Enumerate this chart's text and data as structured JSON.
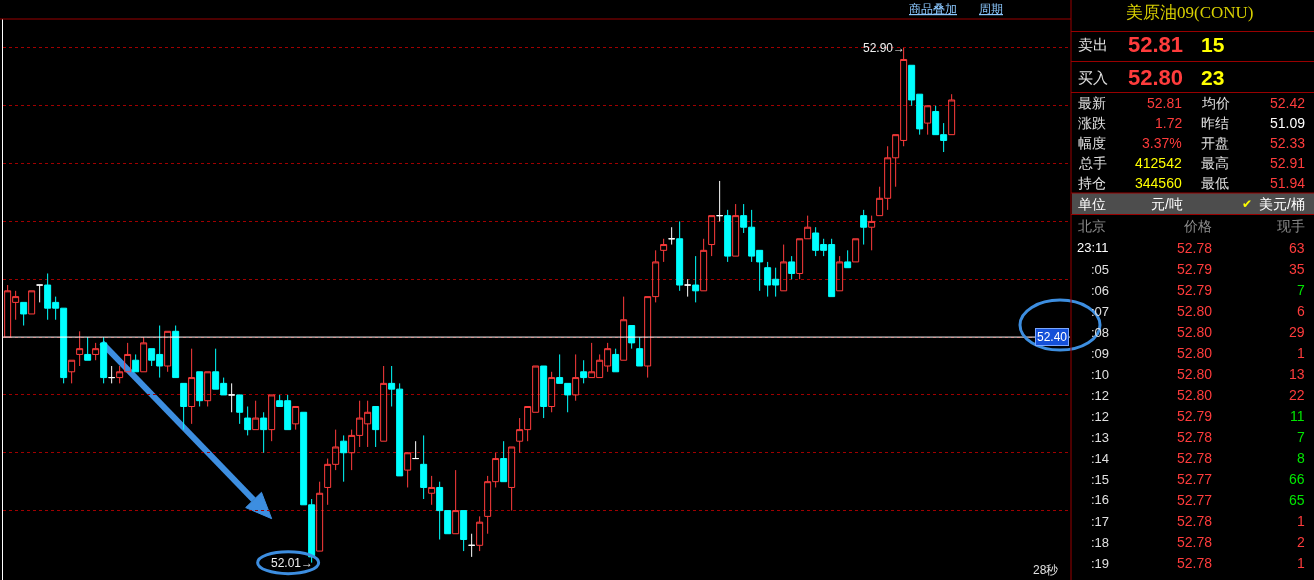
{
  "chart_data": [
    {
      "type": "candlestick",
      "categories": [
        null,
        null,
        null,
        null,
        null,
        null,
        null,
        null,
        null,
        null,
        null,
        null,
        null,
        null,
        null,
        null,
        null,
        null,
        null,
        null,
        null,
        null,
        null,
        null,
        null,
        null,
        null,
        null,
        null,
        null,
        null,
        null,
        null,
        null,
        null,
        null,
        null,
        null,
        null,
        null,
        null,
        null,
        null,
        null,
        null,
        null,
        null,
        null,
        null,
        null,
        null,
        null,
        null,
        null,
        null,
        null,
        null,
        null,
        null,
        null,
        null,
        null,
        null,
        null,
        null,
        null,
        null,
        null,
        null,
        null,
        null,
        null,
        null,
        null,
        null,
        null,
        null,
        null,
        null,
        null,
        null,
        null,
        null,
        null,
        null,
        null,
        null,
        null,
        null,
        null,
        null,
        null,
        null,
        null,
        null,
        null,
        null,
        null,
        null,
        null,
        null,
        null,
        null,
        null,
        null,
        null,
        null,
        null,
        null,
        null,
        null,
        null,
        null,
        null,
        null,
        null,
        null,
        null,
        null
      ],
      "ohlc": [
        [
          52.4,
          52.49,
          52.4,
          52.48
        ],
        [
          52.46,
          52.48,
          52.43,
          52.47
        ],
        [
          52.46,
          52.46,
          52.42,
          52.44
        ],
        [
          52.44,
          52.48,
          52.44,
          52.48
        ],
        [
          52.49,
          52.49,
          52.46,
          52.49
        ],
        [
          52.49,
          52.51,
          52.43,
          52.45
        ],
        [
          52.46,
          52.47,
          52.43,
          52.45
        ],
        [
          52.45,
          52.45,
          52.32,
          52.33
        ],
        [
          52.34,
          52.36,
          52.32,
          52.36
        ],
        [
          52.37,
          52.41,
          52.35,
          52.38
        ],
        [
          52.37,
          52.4,
          52.36,
          52.36
        ],
        [
          52.37,
          52.39,
          52.36,
          52.38
        ],
        [
          52.39,
          52.4,
          52.32,
          52.33
        ],
        [
          52.33,
          52.35,
          52.32,
          52.33
        ],
        [
          52.33,
          52.35,
          52.32,
          52.34
        ],
        [
          52.34,
          52.39,
          52.34,
          52.37
        ],
        [
          52.36,
          52.37,
          52.34,
          52.34
        ],
        [
          52.34,
          52.4,
          52.34,
          52.39
        ],
        [
          52.38,
          52.38,
          52.35,
          52.36
        ],
        [
          52.37,
          52.42,
          52.33,
          52.35
        ],
        [
          52.35,
          52.41,
          52.34,
          52.41
        ],
        [
          52.41,
          52.42,
          52.33,
          52.33
        ],
        [
          52.32,
          52.32,
          52.24,
          52.28
        ],
        [
          52.28,
          52.38,
          52.25,
          52.33
        ],
        [
          52.34,
          52.34,
          52.28,
          52.29
        ],
        [
          52.29,
          52.34,
          52.28,
          52.34
        ],
        [
          52.34,
          52.38,
          52.31,
          52.31
        ],
        [
          52.32,
          52.33,
          52.3,
          52.3
        ],
        [
          52.3,
          52.32,
          52.27,
          52.3
        ],
        [
          52.3,
          52.3,
          52.25,
          52.27
        ],
        [
          52.26,
          52.28,
          52.23,
          52.24
        ],
        [
          52.24,
          52.29,
          52.24,
          52.26
        ],
        [
          52.26,
          52.27,
          52.2,
          52.24
        ],
        [
          52.24,
          52.3,
          52.22,
          52.3
        ],
        [
          52.29,
          52.3,
          52.28,
          52.28
        ],
        [
          52.29,
          52.3,
          52.24,
          52.24
        ],
        [
          52.25,
          52.28,
          52.24,
          52.28
        ],
        [
          52.27,
          52.27,
          52.11,
          52.11
        ],
        [
          52.11,
          52.12,
          52.01,
          52.02
        ],
        [
          52.03,
          52.15,
          52.03,
          52.13
        ],
        [
          52.14,
          52.19,
          52.11,
          52.18
        ],
        [
          52.18,
          52.24,
          52.17,
          52.21
        ],
        [
          52.22,
          52.23,
          52.15,
          52.2
        ],
        [
          52.2,
          52.24,
          52.17,
          52.23
        ],
        [
          52.23,
          52.29,
          52.21,
          52.26
        ],
        [
          52.25,
          52.29,
          52.21,
          52.27
        ],
        [
          52.28,
          52.28,
          52.21,
          52.24
        ],
        [
          52.22,
          52.35,
          52.22,
          52.32
        ],
        [
          52.32,
          52.35,
          52.28,
          52.31
        ],
        [
          52.31,
          52.32,
          52.16,
          52.16
        ],
        [
          52.17,
          52.2,
          52.14,
          52.2
        ],
        [
          52.19,
          52.22,
          52.19,
          52.19
        ],
        [
          52.18,
          52.23,
          52.12,
          52.14
        ],
        [
          52.13,
          52.16,
          52.11,
          52.14
        ],
        [
          52.14,
          52.15,
          52.05,
          52.1
        ],
        [
          52.1,
          52.1,
          52.06,
          52.06
        ],
        [
          52.06,
          52.17,
          52.06,
          52.1
        ],
        [
          52.1,
          52.1,
          52.03,
          52.05
        ],
        [
          52.04,
          52.06,
          52.02,
          52.04
        ],
        [
          52.04,
          52.09,
          52.03,
          52.08
        ],
        [
          52.09,
          52.16,
          52.06,
          52.15
        ],
        [
          52.15,
          52.2,
          52.14,
          52.19
        ],
        [
          52.19,
          52.22,
          52.15,
          52.15
        ],
        [
          52.14,
          52.21,
          52.1,
          52.21
        ],
        [
          52.22,
          52.26,
          52.2,
          52.24
        ],
        [
          52.24,
          52.28,
          52.22,
          52.28
        ],
        [
          52.27,
          52.35,
          52.27,
          52.35
        ],
        [
          52.35,
          52.35,
          52.26,
          52.28
        ],
        [
          52.28,
          52.34,
          52.27,
          52.33
        ],
        [
          52.33,
          52.37,
          52.32,
          52.32
        ],
        [
          52.32,
          52.32,
          52.27,
          52.3
        ],
        [
          52.3,
          52.37,
          52.29,
          52.33
        ],
        [
          52.34,
          52.36,
          52.32,
          52.33
        ],
        [
          52.33,
          52.39,
          52.33,
          52.34
        ],
        [
          52.33,
          52.37,
          52.33,
          52.36
        ],
        [
          52.35,
          52.39,
          52.34,
          52.38
        ],
        [
          52.37,
          52.38,
          52.34,
          52.34
        ],
        [
          52.36,
          52.47,
          52.36,
          52.43
        ],
        [
          52.42,
          52.42,
          52.38,
          52.39
        ],
        [
          52.38,
          52.4,
          52.35,
          52.35
        ],
        [
          52.35,
          52.47,
          52.33,
          52.47
        ],
        [
          52.47,
          52.55,
          52.46,
          52.53
        ],
        [
          52.55,
          52.57,
          52.53,
          52.56
        ],
        [
          52.57,
          52.59,
          52.56,
          52.57
        ],
        [
          52.57,
          52.6,
          52.48,
          52.49
        ],
        [
          52.49,
          52.5,
          52.47,
          52.49
        ],
        [
          52.49,
          52.54,
          52.46,
          52.48
        ],
        [
          52.48,
          52.57,
          52.48,
          52.55
        ],
        [
          52.56,
          52.61,
          52.54,
          52.61
        ],
        [
          52.61,
          52.67,
          52.6,
          52.61
        ],
        [
          52.61,
          52.62,
          52.53,
          52.54
        ],
        [
          52.54,
          52.63,
          52.54,
          52.61
        ],
        [
          52.61,
          52.63,
          52.58,
          52.59
        ],
        [
          52.59,
          52.62,
          52.53,
          52.54
        ],
        [
          52.55,
          52.55,
          52.48,
          52.53
        ],
        [
          52.52,
          52.53,
          52.47,
          52.49
        ],
        [
          52.5,
          52.52,
          52.47,
          52.49
        ],
        [
          52.48,
          52.56,
          52.48,
          52.53
        ],
        [
          52.53,
          52.54,
          52.5,
          52.51
        ],
        [
          52.51,
          52.57,
          52.5,
          52.57
        ],
        [
          52.57,
          52.61,
          52.57,
          52.59
        ],
        [
          52.58,
          52.59,
          52.54,
          52.55
        ],
        [
          52.56,
          52.57,
          52.54,
          52.55
        ],
        [
          52.56,
          52.57,
          52.47,
          52.47
        ],
        [
          52.48,
          52.54,
          52.48,
          52.53
        ],
        [
          52.53,
          52.55,
          52.52,
          52.52
        ],
        [
          52.53,
          52.57,
          52.53,
          52.57
        ],
        [
          52.61,
          52.62,
          52.56,
          52.59
        ],
        [
          52.59,
          52.61,
          52.55,
          52.6
        ],
        [
          52.61,
          52.66,
          52.61,
          52.64
        ],
        [
          52.64,
          52.73,
          52.62,
          52.71
        ],
        [
          52.71,
          52.75,
          52.66,
          52.75
        ],
        [
          52.74,
          52.9,
          52.73,
          52.88
        ],
        [
          52.87,
          52.87,
          52.8,
          52.81
        ],
        [
          52.82,
          52.82,
          52.75,
          52.76
        ],
        [
          52.77,
          52.8,
          52.75,
          52.8
        ],
        [
          52.79,
          52.8,
          52.75,
          52.75
        ],
        [
          52.75,
          52.77,
          52.72,
          52.74
        ],
        [
          52.75,
          52.82,
          52.75,
          52.81
        ]
      ],
      "colors": [
        "#ff3c3c",
        "#ff3c3c",
        "#00ffff",
        "#ff3c3c",
        "#ffffff",
        "#00ffff",
        "#00ffff",
        "#00ffff",
        "#ff3c3c",
        "#ff3c3c",
        "#00ffff",
        "#ff3c3c",
        "#00ffff",
        "#ffffff",
        "#ff3c3c",
        "#ff3c3c",
        "#00ffff",
        "#ff3c3c",
        "#00ffff",
        "#00ffff",
        "#ff3c3c",
        "#00ffff",
        "#00ffff",
        "#ff3c3c",
        "#00ffff",
        "#ff3c3c",
        "#00ffff",
        "#00ffff",
        "#ffffff",
        "#00ffff",
        "#00ffff",
        "#ff3c3c",
        "#00ffff",
        "#ff3c3c",
        "#00ffff",
        "#00ffff",
        "#ff3c3c",
        "#00ffff",
        "#00ffff",
        "#ff3c3c",
        "#ff3c3c",
        "#ff3c3c",
        "#00ffff",
        "#ff3c3c",
        "#ff3c3c",
        "#ff3c3c",
        "#00ffff",
        "#ff3c3c",
        "#00ffff",
        "#00ffff",
        "#ff3c3c",
        "#ffffff",
        "#00ffff",
        "#ff3c3c",
        "#00ffff",
        "#00ffff",
        "#ff3c3c",
        "#00ffff",
        "#ffffff",
        "#ff3c3c",
        "#ff3c3c",
        "#ff3c3c",
        "#00ffff",
        "#ff3c3c",
        "#ff3c3c",
        "#ff3c3c",
        "#ff3c3c",
        "#00ffff",
        "#ff3c3c",
        "#00ffff",
        "#00ffff",
        "#ff3c3c",
        "#00ffff",
        "#ff3c3c",
        "#ff3c3c",
        "#ff3c3c",
        "#00ffff",
        "#ff3c3c",
        "#00ffff",
        "#00ffff",
        "#ff3c3c",
        "#ff3c3c",
        "#ff3c3c",
        "#ffffff",
        "#00ffff",
        "#ffffff",
        "#00ffff",
        "#ff3c3c",
        "#ff3c3c",
        "#ffffff",
        "#00ffff",
        "#ff3c3c",
        "#00ffff",
        "#00ffff",
        "#00ffff",
        "#00ffff",
        "#00ffff",
        "#ff3c3c",
        "#00ffff",
        "#ff3c3c",
        "#ff3c3c",
        "#00ffff",
        "#00ffff",
        "#00ffff",
        "#ff3c3c",
        "#00ffff",
        "#ff3c3c",
        "#00ffff",
        "#ff3c3c",
        "#ff3c3c",
        "#ff3c3c",
        "#ff3c3c",
        "#ff3c3c",
        "#00ffff",
        "#00ffff",
        "#ff3c3c",
        "#00ffff",
        "#00ffff",
        "#ff3c3c"
      ],
      "ylim": [
        51.98,
        52.95
      ],
      "yticks": [
        {
          "value": 52.1,
          "label": null
        },
        {
          "value": 52.2,
          "label": null
        },
        {
          "value": 52.3,
          "label": null
        },
        {
          "value": 52.4,
          "label": null
        },
        {
          "value": 52.5,
          "label": null
        },
        {
          "value": 52.6,
          "label": null
        },
        {
          "value": 52.7,
          "label": null
        },
        {
          "value": 52.8,
          "label": null
        },
        {
          "value": 52.9,
          "label": null
        }
      ],
      "grid": "y",
      "ref_lines": [
        {
          "axis": "y",
          "value": 52.4,
          "label": "52.40",
          "color": "#ffffff"
        }
      ],
      "annotations": [
        "52.90→",
        "52.01→",
        "商品叠加",
        "周期",
        "28秒"
      ]
    },
    {
      "type": "other",
      "title": "美原油09(CONU)",
      "annotations": [
        "卖出",
        "52.81",
        "15",
        "买入",
        "52.80",
        "23",
        "最新",
        "52.81",
        "均价",
        "52.42",
        "涨跌",
        "1.72",
        "昨结",
        "51.09",
        "幅度",
        "3.37%",
        "开盘",
        "52.33",
        "总手",
        "412542",
        "最高",
        "52.91",
        "持仓",
        "344560",
        "最低",
        "51.94",
        "单位",
        "元/吨",
        "✔",
        "美元/桶",
        "北京",
        "价格",
        "现手",
        "23:11",
        "52.78",
        "63",
        ":05",
        "52.79",
        "35",
        ":06",
        "52.79",
        "7",
        ":07",
        "52.80",
        "6",
        ":08",
        "52.80",
        "29",
        ":09",
        "52.80",
        "1",
        ":10",
        "52.80",
        "13",
        ":12",
        "52.80",
        "22",
        ":12",
        "52.79",
        "11",
        ":13",
        "52.78",
        "7",
        ":14",
        "52.78",
        "8",
        ":15",
        "52.77",
        "66",
        ":16",
        "52.77",
        "65",
        ":17",
        "52.78",
        "1",
        ":18",
        "52.78",
        "2",
        ":19",
        "52.78",
        "1"
      ],
      "colors": [
        "#e0e0e0",
        "#ff3c3c",
        "#ffff00",
        "#e0e0e0",
        "#ff3c3c",
        "#ffff00",
        "#e0e0e0",
        "#ff3c3c",
        "#e0e0e0",
        "#ff3c3c",
        "#e0e0e0",
        "#ff3c3c",
        "#e0e0e0",
        "#ffffff",
        "#e0e0e0",
        "#ff3c3c",
        "#e0e0e0",
        "#ff3c3c",
        "#e0e0e0",
        "#ffff00",
        "#e0e0e0",
        "#ff3c3c",
        "#e0e0e0",
        "#ffff00",
        "#e0e0e0",
        "#ff3c3c",
        "#ffffff",
        "#ffffff",
        "#ffff00",
        "#ffffff",
        "#8c8c8c",
        "#8c8c8c",
        "#8c8c8c",
        "#ffffff",
        "#ff3c3c",
        "#ff3c3c",
        "#e0e0e0",
        "#ff3c3c",
        "#ff3c3c",
        "#e0e0e0",
        "#ff3c3c",
        "#00e600",
        "#e0e0e0",
        "#ff3c3c",
        "#ff3c3c",
        "#e0e0e0",
        "#ff3c3c",
        "#ff3c3c",
        "#e0e0e0",
        "#ff3c3c",
        "#ff3c3c",
        "#e0e0e0",
        "#ff3c3c",
        "#ff3c3c",
        "#e0e0e0",
        "#ff3c3c",
        "#ff3c3c",
        "#e0e0e0",
        "#ff3c3c",
        "#00e600",
        "#e0e0e0",
        "#ff3c3c",
        "#00e600",
        "#e0e0e0",
        "#ff3c3c",
        "#00e600",
        "#e0e0e0",
        "#ff3c3c",
        "#00e600",
        "#e0e0e0",
        "#ff3c3c",
        "#00e600",
        "#e0e0e0",
        "#ff3c3c",
        "#ff3c3c",
        "#e0e0e0",
        "#ff3c3c",
        "#ff3c3c",
        "#e0e0e0",
        "#ff3c3c",
        "#ff3c3c"
      ]
    }
  ]
}
